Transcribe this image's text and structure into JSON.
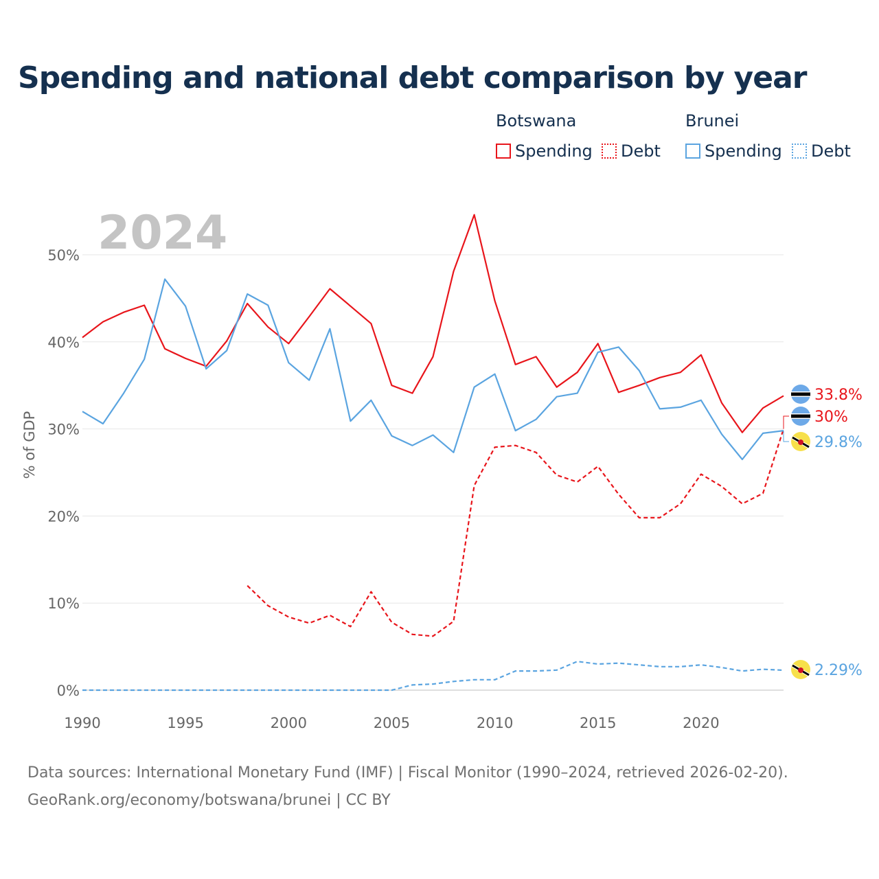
{
  "title": "Spending and national debt comparison by year",
  "legend": {
    "groups": [
      {
        "name": "Botswana",
        "color": "#e8151b",
        "items": [
          {
            "label": "Spending",
            "style": "solid"
          },
          {
            "label": "Debt",
            "style": "dotted"
          }
        ]
      },
      {
        "name": "Brunei",
        "color": "#5aa4e0",
        "items": [
          {
            "label": "Spending",
            "style": "solid"
          },
          {
            "label": "Debt",
            "style": "dotted"
          }
        ]
      }
    ]
  },
  "footer": {
    "line1": "Data sources: International Monetary Fund (IMF) | Fiscal Monitor (1990–2024, retrieved 2026-02-20).",
    "line2": "GeoRank.org/economy/botswana/brunei | CC BY"
  },
  "chart_data": {
    "type": "line",
    "year_label": "2024",
    "ylabel": "% of GDP",
    "xlim": [
      1990,
      2024
    ],
    "ylim": [
      0,
      55
    ],
    "yticks": [
      0,
      10,
      20,
      30,
      40,
      50
    ],
    "ytick_labels": [
      "0%",
      "10%",
      "20%",
      "30%",
      "40%",
      "50%"
    ],
    "xticks": [
      1990,
      1995,
      2000,
      2005,
      2010,
      2015,
      2020
    ],
    "xtick_labels": [
      "1990",
      "1995",
      "2000",
      "2005",
      "2010",
      "2015",
      "2020"
    ],
    "grid": true,
    "series": [
      {
        "name": "Botswana Spending",
        "color": "#e8151b",
        "dash": "solid",
        "start": 1990,
        "values": [
          40.5,
          42.3,
          43.4,
          44.2,
          39.2,
          38.1,
          37.2,
          40.1,
          44.4,
          41.7,
          39.8,
          42.9,
          46.1,
          44.1,
          42.1,
          35.0,
          34.1,
          38.3,
          48.1,
          54.6,
          44.7,
          37.4,
          38.3,
          34.8,
          36.5,
          39.8,
          34.2,
          35.0,
          35.9,
          36.5,
          38.5,
          33.0,
          29.6,
          32.4,
          33.8
        ],
        "end_label": "33.8%",
        "flag": "botswana"
      },
      {
        "name": "Botswana Debt",
        "color": "#e8151b",
        "dash": "dashed",
        "start": 1998,
        "values": [
          12.0,
          9.7,
          8.4,
          7.7,
          8.6,
          7.3,
          11.3,
          7.8,
          6.4,
          6.2,
          7.9,
          23.5,
          27.9,
          28.1,
          27.3,
          24.7,
          23.9,
          25.7,
          22.5,
          19.8,
          19.8,
          21.4,
          24.8,
          23.4,
          21.4,
          22.6,
          30.0
        ],
        "end_label": "30%",
        "flag": "botswana"
      },
      {
        "name": "Brunei Spending",
        "color": "#5aa4e0",
        "dash": "solid",
        "start": 1990,
        "values": [
          32.0,
          30.6,
          34.1,
          38.0,
          47.2,
          44.1,
          36.9,
          39.0,
          45.5,
          44.2,
          37.6,
          35.6,
          41.5,
          30.9,
          33.3,
          29.2,
          28.1,
          29.3,
          27.3,
          34.8,
          36.3,
          29.8,
          31.1,
          33.7,
          34.1,
          38.8,
          39.4,
          36.7,
          32.3,
          32.5,
          33.3,
          29.4,
          26.5,
          29.5,
          29.8
        ],
        "end_label": "29.8%",
        "flag": "brunei"
      },
      {
        "name": "Brunei Debt",
        "color": "#5aa4e0",
        "dash": "dashed",
        "start": 1990,
        "values": [
          0,
          0,
          0,
          0,
          0,
          0,
          0,
          0,
          0,
          0,
          0,
          0,
          0,
          0,
          0,
          0,
          0.6,
          0.7,
          1.0,
          1.2,
          1.2,
          2.2,
          2.2,
          2.3,
          3.3,
          3.0,
          3.1,
          2.9,
          2.7,
          2.7,
          2.9,
          2.6,
          2.2,
          2.4,
          2.29
        ],
        "end_label": "2.29%",
        "flag": "brunei"
      }
    ]
  }
}
